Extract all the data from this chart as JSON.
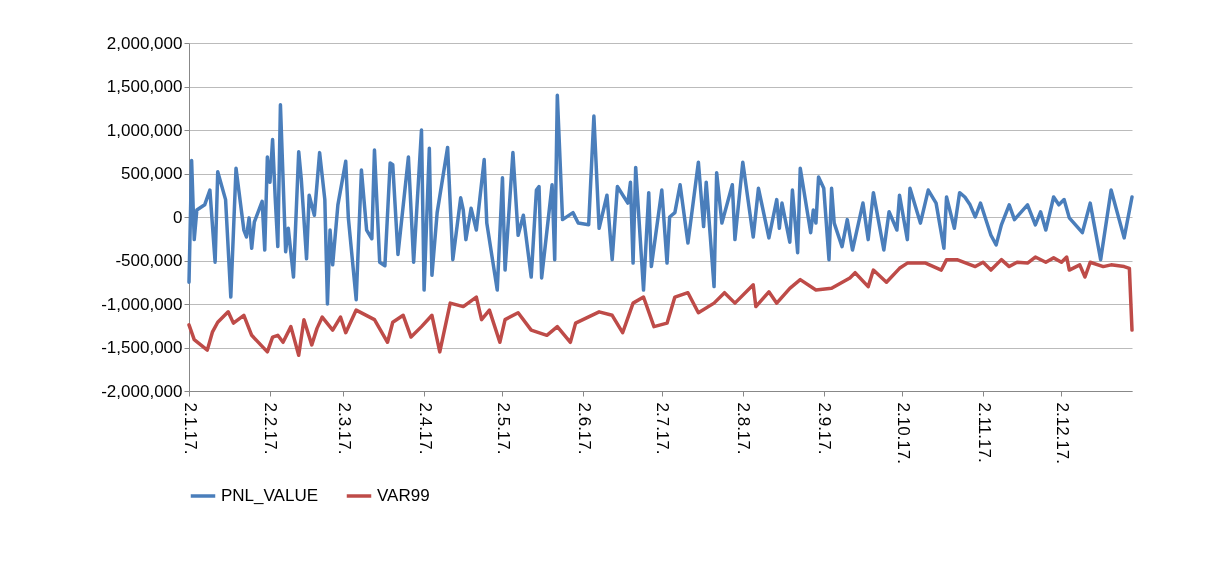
{
  "chart_data": {
    "type": "line",
    "xlim": [
      "2017-01-02",
      "2017-12-29"
    ],
    "xticks": [
      {
        "value": "2017-01-02",
        "label": "2.1.17."
      },
      {
        "value": "2017-02-02",
        "label": "2.2.17."
      },
      {
        "value": "2017-03-02",
        "label": "2.3.17."
      },
      {
        "value": "2017-04-02",
        "label": "2.4.17."
      },
      {
        "value": "2017-05-02",
        "label": "2.5.17."
      },
      {
        "value": "2017-06-02",
        "label": "2.6.17."
      },
      {
        "value": "2017-07-02",
        "label": "2.7.17."
      },
      {
        "value": "2017-08-02",
        "label": "2.8.17."
      },
      {
        "value": "2017-09-02",
        "label": "2.9.17."
      },
      {
        "value": "2017-10-02",
        "label": "2.10.17."
      },
      {
        "value": "2017-11-02",
        "label": "2.11.17."
      },
      {
        "value": "2017-12-02",
        "label": "2.12.17."
      }
    ],
    "ylim": [
      -2000000,
      2000000
    ],
    "yticks": [
      {
        "value": -2000000,
        "label": "-2,000,000"
      },
      {
        "value": -1500000,
        "label": "-1,500,000"
      },
      {
        "value": -1000000,
        "label": "-1,000,000"
      },
      {
        "value": -500000,
        "label": "-500,000"
      },
      {
        "value": 0,
        "label": "0"
      },
      {
        "value": 500000,
        "label": "500,000"
      },
      {
        "value": 1000000,
        "label": "1,000,000"
      },
      {
        "value": 1500000,
        "label": "1,500,000"
      },
      {
        "value": 2000000,
        "label": "2,000,000"
      }
    ],
    "grid": "y",
    "legend": "bottom",
    "marker": "none",
    "line_style": "solid",
    "series": [
      {
        "name": "PNL_VALUE",
        "color": "#4a7ebb",
        "x": [
          "2017-01-02",
          "2017-01-03",
          "2017-01-04",
          "2017-01-05",
          "2017-01-08",
          "2017-01-10",
          "2017-01-12",
          "2017-01-13",
          "2017-01-16",
          "2017-01-18",
          "2017-01-20",
          "2017-01-23",
          "2017-01-24",
          "2017-01-25",
          "2017-01-26",
          "2017-01-27",
          "2017-01-30",
          "2017-01-31",
          "2017-02-01",
          "2017-02-02",
          "2017-02-03",
          "2017-02-04",
          "2017-02-05",
          "2017-02-06",
          "2017-02-08",
          "2017-02-09",
          "2017-02-11",
          "2017-02-13",
          "2017-02-14",
          "2017-02-16",
          "2017-02-17",
          "2017-02-19",
          "2017-02-21",
          "2017-02-23",
          "2017-02-24",
          "2017-02-25",
          "2017-02-26",
          "2017-02-28",
          "2017-03-03",
          "2017-03-04",
          "2017-03-07",
          "2017-03-09",
          "2017-03-11",
          "2017-03-13",
          "2017-03-14",
          "2017-03-16",
          "2017-03-18",
          "2017-03-20",
          "2017-03-21",
          "2017-03-23",
          "2017-03-27",
          "2017-03-29",
          "2017-04-01",
          "2017-04-02",
          "2017-04-04",
          "2017-04-05",
          "2017-04-07",
          "2017-04-11",
          "2017-04-13",
          "2017-04-16",
          "2017-04-17",
          "2017-04-18",
          "2017-04-20",
          "2017-04-22",
          "2017-04-25",
          "2017-04-26",
          "2017-04-30",
          "2017-05-02",
          "2017-05-03",
          "2017-05-06",
          "2017-05-08",
          "2017-05-10",
          "2017-05-13",
          "2017-05-15",
          "2017-05-16",
          "2017-05-17",
          "2017-05-21",
          "2017-05-22",
          "2017-05-23",
          "2017-05-25",
          "2017-05-29",
          "2017-05-31",
          "2017-06-04",
          "2017-06-06",
          "2017-06-08",
          "2017-06-11",
          "2017-06-13",
          "2017-06-15",
          "2017-06-19",
          "2017-06-20",
          "2017-06-21",
          "2017-06-22",
          "2017-06-25",
          "2017-06-27",
          "2017-06-28",
          "2017-07-02",
          "2017-07-04",
          "2017-07-05",
          "2017-07-07",
          "2017-07-09",
          "2017-07-12",
          "2017-07-16",
          "2017-07-18",
          "2017-07-19",
          "2017-07-22",
          "2017-07-23",
          "2017-07-25",
          "2017-07-29",
          "2017-07-30",
          "2017-08-02",
          "2017-08-06",
          "2017-08-08",
          "2017-08-12",
          "2017-08-15",
          "2017-08-16",
          "2017-08-17",
          "2017-08-20",
          "2017-08-21",
          "2017-08-23",
          "2017-08-24",
          "2017-08-28",
          "2017-08-29",
          "2017-08-30",
          "2017-08-31",
          "2017-09-02",
          "2017-09-04",
          "2017-09-05",
          "2017-09-06",
          "2017-09-09",
          "2017-09-11",
          "2017-09-13",
          "2017-09-17",
          "2017-09-19",
          "2017-09-21",
          "2017-09-25",
          "2017-09-27",
          "2017-09-30",
          "2017-10-01",
          "2017-10-04",
          "2017-10-05",
          "2017-10-09",
          "2017-10-12",
          "2017-10-15",
          "2017-10-18",
          "2017-10-19",
          "2017-10-22",
          "2017-10-24",
          "2017-10-26",
          "2017-10-28",
          "2017-10-30",
          "2017-11-01",
          "2017-11-05",
          "2017-11-07",
          "2017-11-09",
          "2017-11-12",
          "2017-11-14",
          "2017-11-19",
          "2017-11-22",
          "2017-11-24",
          "2017-11-26",
          "2017-11-29",
          "2017-12-01",
          "2017-12-03",
          "2017-12-05",
          "2017-12-10",
          "2017-12-13",
          "2017-12-17",
          "2017-12-21",
          "2017-12-26",
          "2017-12-29"
        ],
        "values": [
          -750000,
          650000,
          -260000,
          80000,
          140000,
          310000,
          -520000,
          520000,
          200000,
          -920000,
          560000,
          -150000,
          -230000,
          -10000,
          -360000,
          -60000,
          180000,
          -380000,
          690000,
          400000,
          890000,
          220000,
          -340000,
          1290000,
          -400000,
          -130000,
          -690000,
          750000,
          430000,
          -480000,
          250000,
          20000,
          740000,
          200000,
          -1000000,
          -150000,
          -550000,
          140000,
          640000,
          -10000,
          -950000,
          540000,
          -150000,
          -250000,
          770000,
          -520000,
          -560000,
          620000,
          600000,
          -430000,
          690000,
          -520000,
          1000000,
          -840000,
          790000,
          -670000,
          50000,
          800000,
          -490000,
          220000,
          80000,
          -260000,
          100000,
          -150000,
          660000,
          -70000,
          -840000,
          450000,
          -610000,
          740000,
          -210000,
          20000,
          -690000,
          310000,
          350000,
          -700000,
          370000,
          -490000,
          1400000,
          -30000,
          50000,
          -70000,
          -90000,
          1160000,
          -130000,
          250000,
          -490000,
          350000,
          160000,
          400000,
          -530000,
          570000,
          -840000,
          280000,
          -570000,
          310000,
          -530000,
          0,
          50000,
          370000,
          -300000,
          630000,
          -110000,
          400000,
          -800000,
          510000,
          -70000,
          370000,
          -260000,
          630000,
          -230000,
          330000,
          -240000,
          200000,
          -130000,
          160000,
          -290000,
          310000,
          -410000,
          560000,
          -180000,
          80000,
          -70000,
          460000,
          330000,
          -490000,
          330000,
          -70000,
          -340000,
          -30000,
          -380000,
          160000,
          -260000,
          280000,
          -380000,
          60000,
          -150000,
          250000,
          -260000,
          330000,
          -70000,
          310000,
          160000,
          -360000,
          230000,
          -130000,
          280000,
          230000,
          140000,
          0,
          160000,
          -210000,
          -320000,
          -90000,
          140000,
          -30000,
          140000,
          -90000,
          60000,
          -150000,
          230000,
          140000,
          200000,
          -10000,
          -180000,
          160000,
          -490000,
          310000,
          -240000,
          230000
        ]
      },
      {
        "name": "VAR99",
        "color": "#be4b48",
        "x": [
          "2017-01-02",
          "2017-01-04",
          "2017-01-09",
          "2017-01-11",
          "2017-01-13",
          "2017-01-17",
          "2017-01-19",
          "2017-01-23",
          "2017-01-26",
          "2017-02-01",
          "2017-02-03",
          "2017-02-05",
          "2017-02-07",
          "2017-02-10",
          "2017-02-13",
          "2017-02-15",
          "2017-02-18",
          "2017-02-20",
          "2017-02-22",
          "2017-02-26",
          "2017-03-01",
          "2017-03-03",
          "2017-03-07",
          "2017-03-14",
          "2017-03-19",
          "2017-03-21",
          "2017-03-25",
          "2017-03-28",
          "2017-04-01",
          "2017-04-05",
          "2017-04-08",
          "2017-04-12",
          "2017-04-17",
          "2017-04-22",
          "2017-04-24",
          "2017-04-27",
          "2017-05-01",
          "2017-05-03",
          "2017-05-08",
          "2017-05-13",
          "2017-05-19",
          "2017-05-23",
          "2017-05-28",
          "2017-05-30",
          "2017-06-08",
          "2017-06-13",
          "2017-06-17",
          "2017-06-21",
          "2017-06-25",
          "2017-06-29",
          "2017-07-04",
          "2017-07-07",
          "2017-07-12",
          "2017-07-16",
          "2017-07-22",
          "2017-07-26",
          "2017-07-30",
          "2017-08-06",
          "2017-08-07",
          "2017-08-12",
          "2017-08-15",
          "2017-08-20",
          "2017-08-24",
          "2017-08-30",
          "2017-09-05",
          "2017-09-12",
          "2017-09-14",
          "2017-09-19",
          "2017-09-21",
          "2017-09-26",
          "2017-10-01",
          "2017-10-04",
          "2017-10-11",
          "2017-10-17",
          "2017-10-19",
          "2017-10-23",
          "2017-10-30",
          "2017-11-02",
          "2017-11-05",
          "2017-11-09",
          "2017-11-12",
          "2017-11-15",
          "2017-11-19",
          "2017-11-22",
          "2017-11-26",
          "2017-11-29",
          "2017-12-02",
          "2017-12-04",
          "2017-12-05",
          "2017-12-09",
          "2017-12-11",
          "2017-12-13",
          "2017-12-18",
          "2017-12-21",
          "2017-12-26",
          "2017-12-28",
          "2017-12-29"
        ],
        "values": [
          -1240000,
          -1410000,
          -1530000,
          -1320000,
          -1210000,
          -1090000,
          -1220000,
          -1130000,
          -1360000,
          -1550000,
          -1380000,
          -1360000,
          -1440000,
          -1260000,
          -1590000,
          -1180000,
          -1470000,
          -1280000,
          -1150000,
          -1300000,
          -1150000,
          -1330000,
          -1070000,
          -1180000,
          -1440000,
          -1210000,
          -1130000,
          -1380000,
          -1260000,
          -1130000,
          -1550000,
          -990000,
          -1030000,
          -920000,
          -1180000,
          -1070000,
          -1440000,
          -1180000,
          -1100000,
          -1300000,
          -1360000,
          -1260000,
          -1440000,
          -1220000,
          -1090000,
          -1130000,
          -1330000,
          -990000,
          -920000,
          -1260000,
          -1220000,
          -920000,
          -870000,
          -1100000,
          -990000,
          -870000,
          -990000,
          -780000,
          -1030000,
          -860000,
          -990000,
          -820000,
          -720000,
          -840000,
          -820000,
          -700000,
          -640000,
          -800000,
          -610000,
          -750000,
          -590000,
          -530000,
          -530000,
          -610000,
          -490000,
          -490000,
          -570000,
          -520000,
          -610000,
          -490000,
          -570000,
          -520000,
          -530000,
          -460000,
          -520000,
          -470000,
          -520000,
          -460000,
          -610000,
          -550000,
          -690000,
          -520000,
          -570000,
          -550000,
          -570000,
          -590000,
          -1300000
        ]
      }
    ]
  }
}
